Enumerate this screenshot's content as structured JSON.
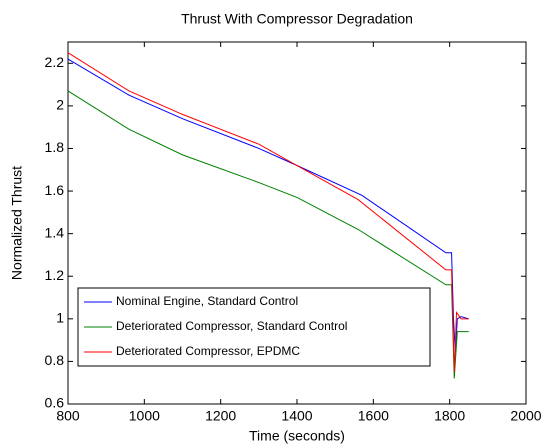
{
  "chart_data": {
    "type": "line",
    "title": "Thrust With Compressor Degradation",
    "xlabel": "Time (seconds)",
    "ylabel": "Normalized Thrust",
    "xlim": [
      800,
      2000
    ],
    "xticks": [
      800,
      1000,
      1200,
      1400,
      1600,
      1800,
      2000
    ],
    "ylim": [
      0.6,
      2.3
    ],
    "yticks": [
      0.6,
      0.8,
      1,
      1.2,
      1.4,
      1.6,
      1.8,
      2,
      2.2
    ],
    "legend": "lower left",
    "series": [
      {
        "name": "Nominal Engine, Standard Control",
        "color": "#0000ff",
        "x": [
          800,
          960,
          1100,
          1300,
          1400,
          1570,
          1790,
          1805,
          1810,
          1815,
          1820,
          1830,
          1850
        ],
        "values": [
          2.22,
          2.05,
          1.94,
          1.8,
          1.72,
          1.58,
          1.31,
          1.31,
          1.0,
          0.84,
          1.0,
          1.01,
          1.0
        ]
      },
      {
        "name": "Deteriorated Compressor, Standard Control",
        "color": "#008000",
        "x": [
          800,
          960,
          1100,
          1300,
          1400,
          1560,
          1790,
          1805,
          1812,
          1820,
          1850
        ],
        "values": [
          2.07,
          1.89,
          1.77,
          1.64,
          1.57,
          1.42,
          1.16,
          1.16,
          0.72,
          0.94,
          0.94
        ]
      },
      {
        "name": "Deteriorated Compressor, EPDMC",
        "color": "#ff0000",
        "x": [
          800,
          960,
          1100,
          1300,
          1400,
          1560,
          1790,
          1805,
          1812,
          1818,
          1830,
          1850
        ],
        "values": [
          2.25,
          2.07,
          1.96,
          1.82,
          1.72,
          1.56,
          1.23,
          1.23,
          0.75,
          1.03,
          1.0,
          1.0
        ]
      }
    ]
  }
}
